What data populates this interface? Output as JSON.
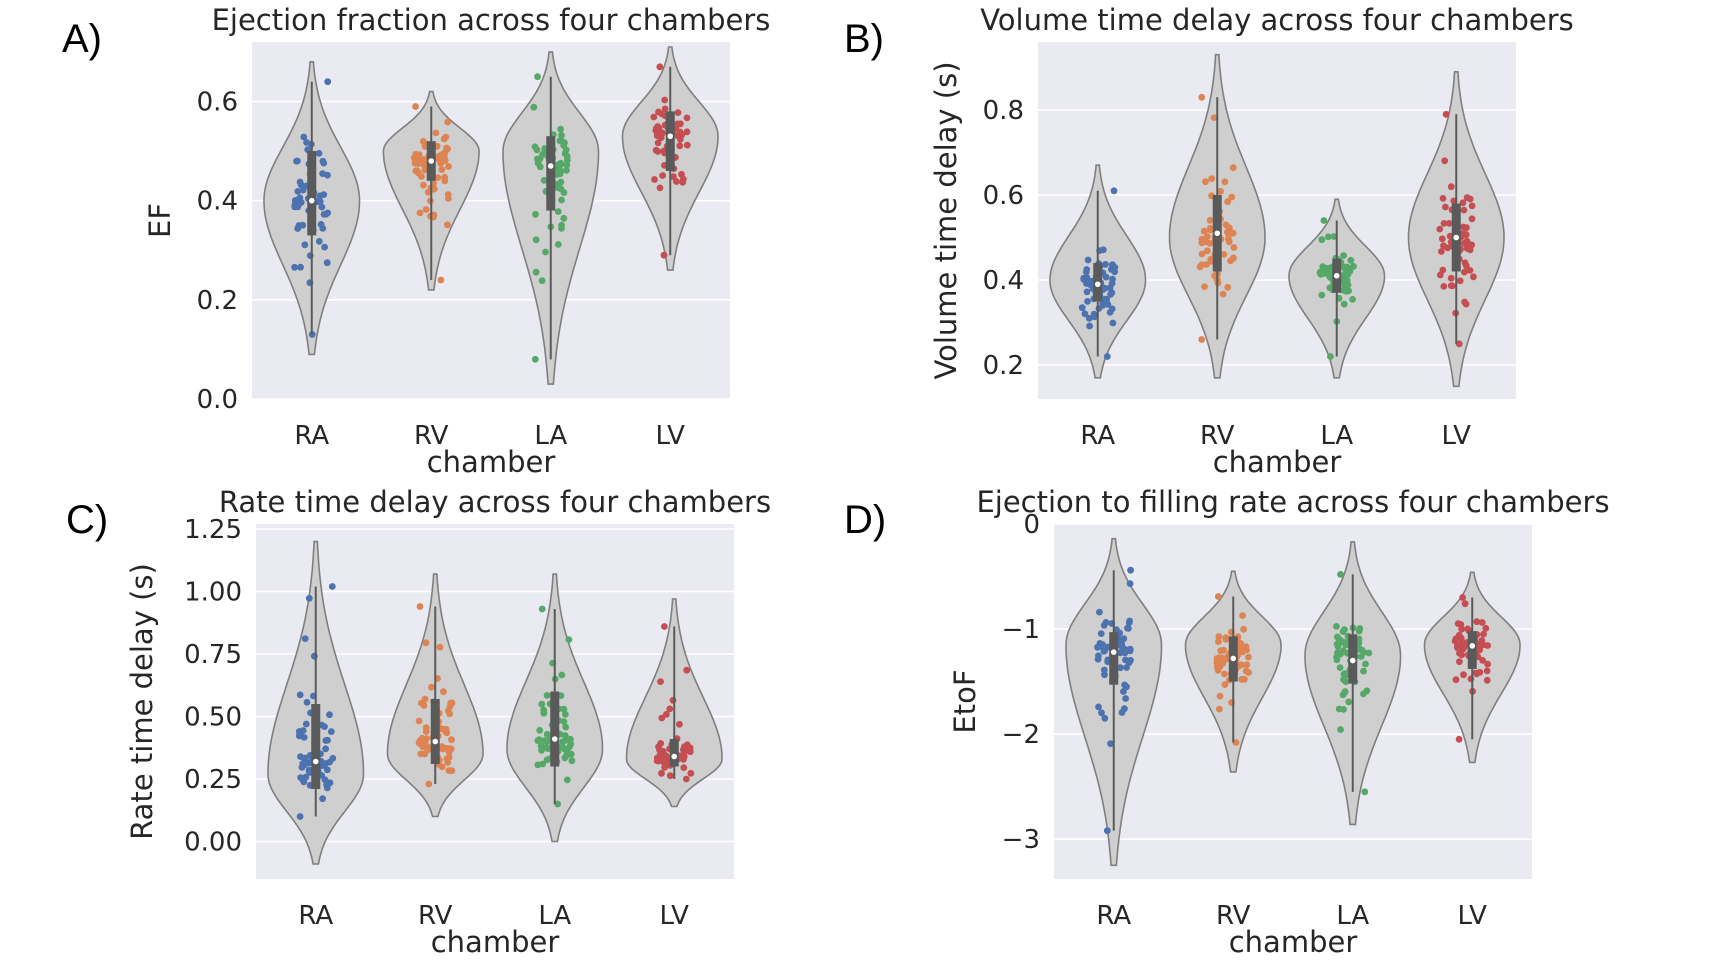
{
  "palette": {
    "plot_bg": "#eaeaf2",
    "grid": "#ffffff",
    "violin_fill": "#cfcfcf",
    "violin_edge": "#7f7f7f",
    "box": "#5a5a5a",
    "median": "#ffffff",
    "chamber_colors": [
      "#4c72b0",
      "#dd8452",
      "#55a868",
      "#c44e52"
    ]
  },
  "chart_data": [
    {
      "panel": "A)",
      "type": "violin",
      "title": "Ejection fraction across four chambers",
      "xlabel": "chamber",
      "ylabel": "EF",
      "categories": [
        "RA",
        "RV",
        "LA",
        "LV"
      ],
      "ylim": [
        0.0,
        0.72
      ],
      "yticks": [
        0.0,
        0.2,
        0.4,
        0.6
      ],
      "ytick_labels": [
        "0.0",
        "0.2",
        "0.4",
        "0.6"
      ],
      "grid": true,
      "groups": [
        {
          "name": "RA",
          "violin_min": 0.09,
          "violin_max": 0.68,
          "q1": 0.33,
          "median": 0.4,
          "q3": 0.5,
          "points_min": 0.13,
          "points_max": 0.64,
          "mode": 0.4
        },
        {
          "name": "RV",
          "violin_min": 0.22,
          "violin_max": 0.62,
          "q1": 0.44,
          "median": 0.48,
          "q3": 0.52,
          "points_min": 0.24,
          "points_max": 0.59,
          "mode": 0.5
        },
        {
          "name": "LA",
          "violin_min": 0.03,
          "violin_max": 0.7,
          "q1": 0.38,
          "median": 0.47,
          "q3": 0.53,
          "points_min": 0.08,
          "points_max": 0.65,
          "mode": 0.5
        },
        {
          "name": "LV",
          "violin_min": 0.26,
          "violin_max": 0.71,
          "q1": 0.46,
          "median": 0.53,
          "q3": 0.58,
          "points_min": 0.29,
          "points_max": 0.67,
          "mode": 0.53
        }
      ]
    },
    {
      "panel": "B)",
      "type": "violin",
      "title": "Volume time delay across four chambers",
      "xlabel": "chamber",
      "ylabel": "Volume time delay (s)",
      "categories": [
        "RA",
        "RV",
        "LA",
        "LV"
      ],
      "ylim": [
        0.12,
        0.96
      ],
      "yticks": [
        0.2,
        0.4,
        0.6,
        0.8
      ],
      "ytick_labels": [
        "0.2",
        "0.4",
        "0.6",
        "0.8"
      ],
      "grid": true,
      "groups": [
        {
          "name": "RA",
          "violin_min": 0.17,
          "violin_max": 0.67,
          "q1": 0.35,
          "median": 0.39,
          "q3": 0.44,
          "points_min": 0.22,
          "points_max": 0.61,
          "mode": 0.4
        },
        {
          "name": "RV",
          "violin_min": 0.17,
          "violin_max": 0.93,
          "q1": 0.42,
          "median": 0.51,
          "q3": 0.6,
          "points_min": 0.26,
          "points_max": 0.83,
          "mode": 0.5
        },
        {
          "name": "LA",
          "violin_min": 0.17,
          "violin_max": 0.59,
          "q1": 0.37,
          "median": 0.41,
          "q3": 0.45,
          "points_min": 0.22,
          "points_max": 0.54,
          "mode": 0.41
        },
        {
          "name": "LV",
          "violin_min": 0.15,
          "violin_max": 0.89,
          "q1": 0.42,
          "median": 0.5,
          "q3": 0.58,
          "points_min": 0.25,
          "points_max": 0.79,
          "mode": 0.5
        }
      ]
    },
    {
      "panel": "C)",
      "type": "violin",
      "title": "Rate time delay across four chambers",
      "xlabel": "chamber",
      "ylabel": "Rate time delay (s)",
      "categories": [
        "RA",
        "RV",
        "LA",
        "LV"
      ],
      "ylim": [
        -0.15,
        1.27
      ],
      "yticks": [
        0.0,
        0.25,
        0.5,
        0.75,
        1.0,
        1.25
      ],
      "ytick_labels": [
        "0.00",
        "0.25",
        "0.50",
        "0.75",
        "1.00",
        "1.25"
      ],
      "grid": true,
      "groups": [
        {
          "name": "RA",
          "violin_min": -0.09,
          "violin_max": 1.2,
          "q1": 0.21,
          "median": 0.32,
          "q3": 0.55,
          "points_min": 0.1,
          "points_max": 1.02,
          "mode": 0.27
        },
        {
          "name": "RV",
          "violin_min": 0.1,
          "violin_max": 1.07,
          "q1": 0.31,
          "median": 0.4,
          "q3": 0.57,
          "points_min": 0.23,
          "points_max": 0.94,
          "mode": 0.35
        },
        {
          "name": "LA",
          "violin_min": 0.0,
          "violin_max": 1.07,
          "q1": 0.3,
          "median": 0.41,
          "q3": 0.6,
          "points_min": 0.15,
          "points_max": 0.93,
          "mode": 0.37
        },
        {
          "name": "LV",
          "violin_min": 0.14,
          "violin_max": 0.97,
          "q1": 0.3,
          "median": 0.34,
          "q3": 0.41,
          "points_min": 0.25,
          "points_max": 0.86,
          "mode": 0.33
        }
      ]
    },
    {
      "panel": "D)",
      "type": "violin",
      "title": "Ejection to filling rate across four chambers",
      "xlabel": "chamber",
      "ylabel": "EtoF",
      "categories": [
        "RA",
        "RV",
        "LA",
        "LV"
      ],
      "ylim": [
        -3.38,
        0.0
      ],
      "yticks": [
        -3,
        -2,
        -1,
        0
      ],
      "ytick_labels": [
        "−3",
        "−2",
        "−1",
        "0"
      ],
      "grid": true,
      "groups": [
        {
          "name": "RA",
          "violin_min": -3.25,
          "violin_max": -0.14,
          "q1": -1.53,
          "median": -1.22,
          "q3": -1.03,
          "points_min": -2.92,
          "points_max": -0.44,
          "mode": -1.15
        },
        {
          "name": "RV",
          "violin_min": -2.36,
          "violin_max": -0.45,
          "q1": -1.5,
          "median": -1.28,
          "q3": -1.07,
          "points_min": -2.08,
          "points_max": -0.69,
          "mode": -1.15
        },
        {
          "name": "LA",
          "violin_min": -2.86,
          "violin_max": -0.17,
          "q1": -1.52,
          "median": -1.3,
          "q3": -1.05,
          "points_min": -2.55,
          "points_max": -0.48,
          "mode": -1.25
        },
        {
          "name": "LV",
          "violin_min": -2.27,
          "violin_max": -0.46,
          "q1": -1.38,
          "median": -1.16,
          "q3": -1.02,
          "points_min": -2.05,
          "points_max": -0.7,
          "mode": -1.15
        }
      ]
    }
  ]
}
